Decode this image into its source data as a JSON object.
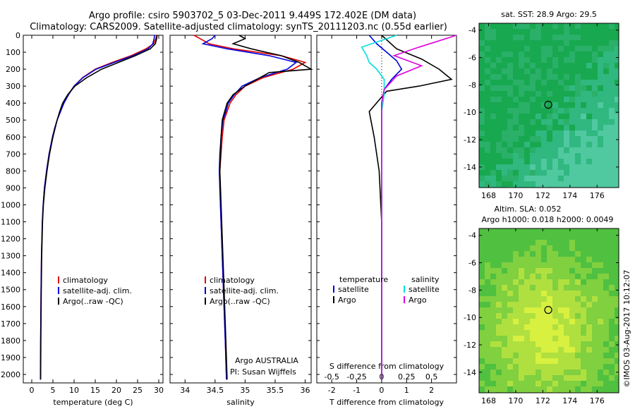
{
  "header": {
    "title_line1": "Argo profile: csiro 5903702_5 03-Dec-2011 9.449S 172.402E (DM data)",
    "title_line2": "Climatology: CARS2009. Satellite-adjusted climatology: synTS_20111203.nc (0.55d earlier)"
  },
  "colors": {
    "climatology": "#e00000",
    "satellite": "#0000e0",
    "argo": "#000000",
    "satellite_salinity": "#00e0e0",
    "argo_salinity": "#e000e0"
  },
  "chart_data": [
    {
      "type": "line",
      "id": "temperature",
      "xlabel": "temperature (deg C)",
      "ylabel": "",
      "xlim": [
        -2,
        31
      ],
      "ylim": [
        2050,
        0
      ],
      "xticks": [
        0,
        5,
        10,
        15,
        20,
        25,
        30
      ],
      "yticks": [
        0,
        100,
        200,
        300,
        400,
        500,
        600,
        700,
        800,
        900,
        1000,
        1100,
        1200,
        1300,
        1400,
        1500,
        1600,
        1700,
        1800,
        1900,
        2000
      ],
      "legend": [
        "climatology",
        "satellite-adj. clim.",
        "Argo(..raw -QC)"
      ],
      "series": [
        {
          "name": "climatology",
          "color": "#e00000",
          "x": [
            29.5,
            29.3,
            28.8,
            27.0,
            23.5,
            19.0,
            15.0,
            12.0,
            10.0,
            8.6,
            7.6,
            6.7,
            6.0,
            5.4,
            4.9,
            4.5,
            4.1,
            3.5,
            3.0,
            2.7,
            2.5,
            2.3,
            2.2,
            2.1,
            2.05
          ],
          "y": [
            0,
            20,
            50,
            80,
            120,
            160,
            200,
            250,
            300,
            350,
            400,
            450,
            500,
            550,
            600,
            650,
            700,
            800,
            900,
            1000,
            1100,
            1300,
            1500,
            1800,
            2030
          ]
        },
        {
          "name": "satellite-adj. clim.",
          "color": "#0000e0",
          "x": [
            29.0,
            28.9,
            28.6,
            27.5,
            24.0,
            19.5,
            15.2,
            12.1,
            10.0,
            8.7,
            7.6,
            6.8,
            6.0,
            5.4,
            4.9,
            4.5,
            4.1,
            3.5,
            3.0,
            2.7,
            2.5,
            2.3,
            2.2,
            2.1,
            2.05
          ],
          "y": [
            0,
            20,
            50,
            80,
            120,
            160,
            200,
            250,
            300,
            350,
            400,
            450,
            500,
            550,
            600,
            650,
            700,
            800,
            900,
            1000,
            1100,
            1300,
            1500,
            1800,
            2030
          ]
        },
        {
          "name": "Argo(..raw -QC)",
          "color": "#000000",
          "x": [
            29.6,
            29.5,
            29.2,
            28.0,
            24.5,
            20.5,
            16.5,
            13.0,
            10.2,
            8.5,
            7.3,
            6.6,
            6.0,
            5.5,
            5.0,
            4.6,
            4.2,
            3.6,
            3.1,
            2.75,
            2.55,
            2.35,
            2.25,
            2.15,
            2.1
          ],
          "y": [
            0,
            20,
            50,
            80,
            120,
            160,
            200,
            250,
            300,
            350,
            400,
            450,
            500,
            550,
            600,
            650,
            700,
            800,
            900,
            1000,
            1100,
            1300,
            1500,
            1800,
            2030
          ]
        }
      ]
    },
    {
      "type": "line",
      "id": "salinity",
      "xlabel": "salinity",
      "xlim": [
        33.75,
        36.1
      ],
      "ylim": [
        2050,
        0
      ],
      "xticks": [
        34,
        34.5,
        35,
        35.5,
        36
      ],
      "legend": [
        "climatology",
        "satellite-adj. clim.",
        "Argo(..raw -QC)"
      ],
      "series": [
        {
          "name": "climatology",
          "color": "#e00000",
          "x": [
            34.15,
            34.25,
            34.4,
            34.8,
            35.6,
            36.0,
            35.8,
            35.3,
            35.0,
            34.85,
            34.75,
            34.7,
            34.65,
            34.62,
            34.6,
            34.58,
            34.58,
            34.6,
            34.62,
            34.64,
            34.67,
            34.69
          ],
          "y": [
            0,
            20,
            50,
            80,
            120,
            160,
            200,
            250,
            300,
            350,
            400,
            450,
            500,
            600,
            700,
            800,
            900,
            1100,
            1300,
            1500,
            1800,
            2030
          ]
        },
        {
          "name": "satellite-adj. clim.",
          "color": "#0000e0",
          "x": [
            34.5,
            34.45,
            34.3,
            34.7,
            35.4,
            35.85,
            35.7,
            35.25,
            34.95,
            34.82,
            34.72,
            34.68,
            34.63,
            34.6,
            34.58,
            34.57,
            34.58,
            34.6,
            34.62,
            34.64,
            34.67,
            34.69
          ],
          "y": [
            0,
            20,
            50,
            80,
            120,
            160,
            200,
            250,
            300,
            350,
            400,
            450,
            500,
            600,
            700,
            800,
            900,
            1100,
            1300,
            1500,
            1800,
            2030
          ]
        },
        {
          "name": "Argo(..raw -QC)",
          "color": "#000000",
          "x": [
            34.9,
            35.0,
            34.8,
            35.1,
            35.6,
            35.9,
            36.1,
            35.4,
            35.0,
            34.8,
            34.7,
            34.66,
            34.62,
            34.6,
            34.59,
            34.58,
            34.59,
            34.61,
            34.63,
            34.65,
            34.68,
            34.7
          ],
          "y": [
            0,
            20,
            50,
            80,
            120,
            160,
            200,
            220,
            300,
            350,
            400,
            450,
            500,
            600,
            700,
            800,
            900,
            1100,
            1300,
            1500,
            1800,
            2030
          ]
        }
      ]
    },
    {
      "type": "line",
      "id": "difference",
      "xlabel_top": "S difference from climatology",
      "xlabel": "T difference from climatology",
      "xlim": [
        -2.6,
        3.0
      ],
      "ylim": [
        2050,
        0
      ],
      "xticks": [
        -2,
        -1,
        0,
        1,
        2
      ],
      "xticks_top": [
        {
          "label": "-0.5",
          "at": -2.0
        },
        {
          "label": "-0.25",
          "at": -1.0
        },
        {
          "label": "0",
          "at": 0
        },
        {
          "label": "0.25",
          "at": 1.0
        },
        {
          "label": "0.5",
          "at": 2.0
        }
      ],
      "legend_temperature_title": "temperature",
      "legend_salinity_title": "salinity",
      "legend": [
        "satellite",
        "Argo",
        "satellite",
        "Argo"
      ],
      "series": [
        {
          "name": "satellite",
          "color": "#0000e0",
          "x": [
            -0.5,
            -0.2,
            0.2,
            0.6,
            0.8,
            0.4,
            0.1,
            0.0,
            0.0,
            0.0,
            0.0,
            0.0,
            0.0,
            0.0
          ],
          "y": [
            0,
            50,
            100,
            150,
            200,
            260,
            320,
            400,
            500,
            700,
            1000,
            1400,
            1800,
            2030
          ]
        },
        {
          "name": "Argo",
          "color": "#000000",
          "x": [
            0.0,
            0.6,
            1.6,
            2.3,
            2.8,
            1.5,
            0.2,
            -0.5,
            -0.3,
            -0.1,
            0.0,
            0.0,
            0.0,
            0.0
          ],
          "y": [
            0,
            80,
            140,
            200,
            260,
            300,
            330,
            450,
            600,
            800,
            1100,
            1400,
            1800,
            2030
          ]
        },
        {
          "name": "satellite",
          "color": "#00e0e0",
          "x": [
            0.6,
            -0.8,
            -0.6,
            -0.5,
            -0.2,
            0.1,
            0.1,
            0.0,
            0.0,
            0.0,
            0.0,
            0.0,
            0.0
          ],
          "y": [
            0,
            70,
            120,
            160,
            200,
            260,
            350,
            450,
            600,
            800,
            1200,
            1600,
            2030
          ]
        },
        {
          "name": "Argo",
          "color": "#e000e0",
          "x": [
            3.0,
            1.5,
            0.5,
            1.6,
            0.6,
            0.1,
            0.0,
            0.0,
            0.0,
            0.0,
            0.0
          ],
          "y": [
            0,
            70,
            120,
            180,
            240,
            320,
            400,
            600,
            900,
            1400,
            2030
          ]
        }
      ]
    }
  ],
  "panel_texts": {
    "program": "Argo AUSTRALIA",
    "pi": "PI: Susan Wijffels"
  },
  "maps": {
    "sst_title": "sat. SST: 28.9 Argo: 29.5",
    "sla_title1": "Altim. SLA: 0.052",
    "sla_title2": "Argo h1000: 0.018 h2000: 0.0049",
    "lon_ticks": [
      "168",
      "170",
      "172",
      "174",
      "176"
    ],
    "lat_ticks": [
      "-4",
      "-6",
      "-8",
      "-10",
      "-12",
      "-14"
    ],
    "marker_lon": 172.4,
    "marker_lat": -9.45,
    "sst_color": "#20b060",
    "sla_color": "#80d040"
  },
  "footer": {
    "imos": "©IMOS 03-Aug-2017 10:12:07"
  }
}
